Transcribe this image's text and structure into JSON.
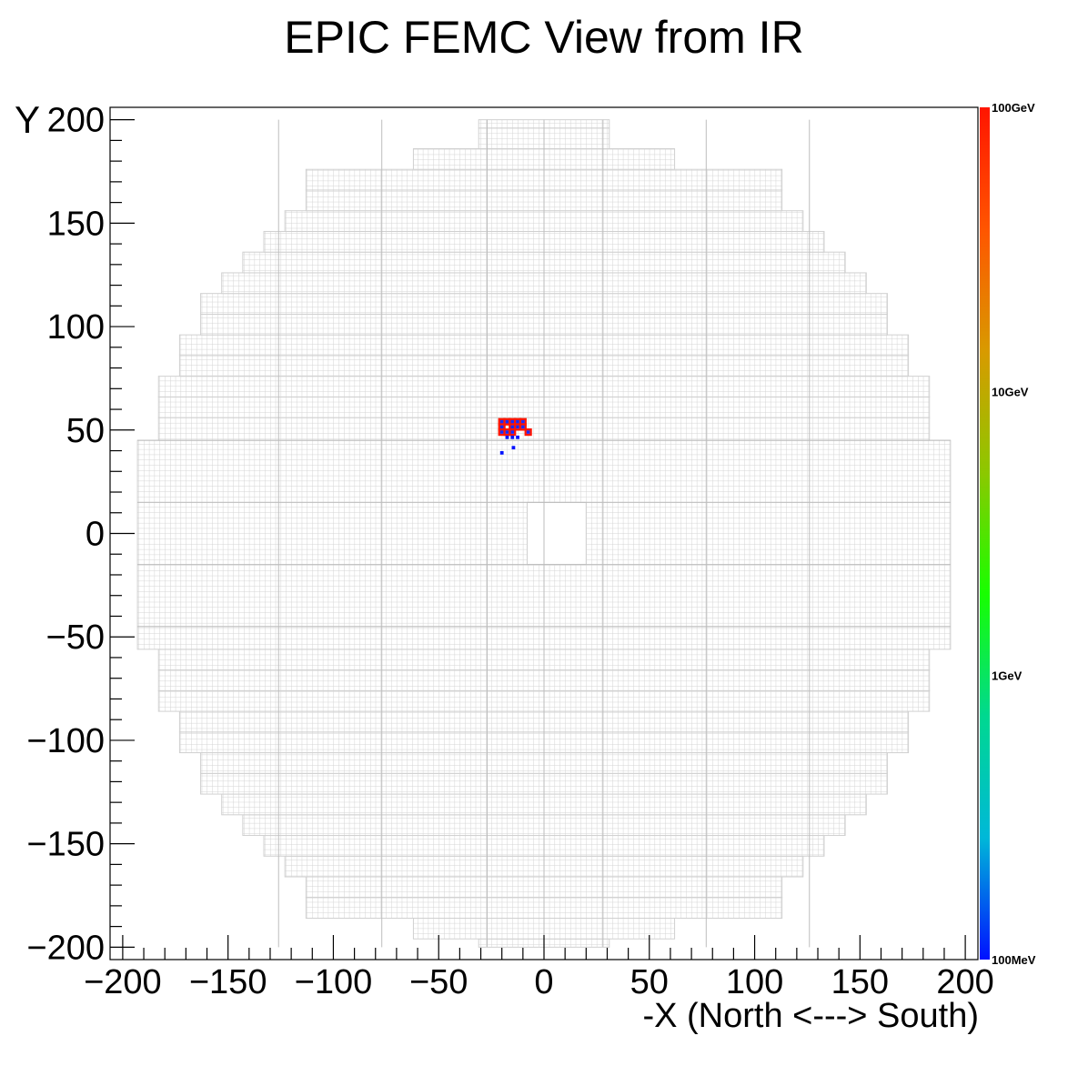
{
  "chart_data": {
    "type": "heatmap",
    "title": "EPIC FEMC View from IR",
    "xlabel": "-X (North <---> South)",
    "ylabel": "Y",
    "xlim": [
      -206,
      206
    ],
    "ylim": [
      -206,
      206
    ],
    "xticks": [
      -200,
      -150,
      -100,
      -50,
      0,
      50,
      100,
      150,
      200
    ],
    "yticks": [
      -200,
      -150,
      -100,
      -50,
      0,
      50,
      100,
      150,
      200
    ],
    "xtick_labels": [
      "−200",
      "−150",
      "−100",
      "−50",
      "0",
      "50",
      "100",
      "150",
      "200"
    ],
    "ytick_labels": [
      "−200",
      "−150",
      "−100",
      "−50",
      "0",
      "50",
      "100",
      "150",
      "200"
    ],
    "color_scale": {
      "log": true,
      "labels": [
        "100MeV",
        "1GeV",
        "10GeV",
        "100GeV"
      ],
      "values_gev": [
        0.1,
        1,
        10,
        100
      ],
      "colors": [
        "#0011ff",
        "#00b8d8",
        "#00d890",
        "#18ff00",
        "#8cc800",
        "#d89a00",
        "#ff5500",
        "#ff1500"
      ]
    },
    "detector": {
      "cell_size": 2.5,
      "grid_color": "#d0d0d0",
      "beam_hole": {
        "x": [
          -8,
          20
        ],
        "y": [
          -15,
          15
        ]
      },
      "row_extents": [
        {
          "y": [
            -200,
            -196
          ],
          "x": [
            -31,
            31
          ]
        },
        {
          "y": [
            -196,
            -186
          ],
          "x": [
            -62,
            62
          ]
        },
        {
          "y": [
            -186,
            -176
          ],
          "x": [
            -113,
            113
          ]
        },
        {
          "y": [
            -176,
            -166
          ],
          "x": [
            -113,
            113
          ]
        },
        {
          "y": [
            -166,
            -156
          ],
          "x": [
            -123,
            123
          ]
        },
        {
          "y": [
            -156,
            -146
          ],
          "x": [
            -133,
            133
          ]
        },
        {
          "y": [
            -146,
            -136
          ],
          "x": [
            -143,
            143
          ]
        },
        {
          "y": [
            -136,
            -126
          ],
          "x": [
            -153,
            153
          ]
        },
        {
          "y": [
            -126,
            -116
          ],
          "x": [
            -163,
            163
          ]
        },
        {
          "y": [
            -116,
            -106
          ],
          "x": [
            -163,
            163
          ]
        },
        {
          "y": [
            -106,
            -96
          ],
          "x": [
            -173,
            173
          ]
        },
        {
          "y": [
            -96,
            -86
          ],
          "x": [
            -173,
            173
          ]
        },
        {
          "y": [
            -86,
            -76
          ],
          "x": [
            -183,
            183
          ]
        },
        {
          "y": [
            -76,
            -66
          ],
          "x": [
            -183,
            183
          ]
        },
        {
          "y": [
            -66,
            -56
          ],
          "x": [
            -183,
            183
          ]
        },
        {
          "y": [
            -56,
            -45
          ],
          "x": [
            -193,
            193
          ]
        },
        {
          "y": [
            -45,
            45
          ],
          "x": [
            -193,
            193
          ]
        },
        {
          "y": [
            45,
            56
          ],
          "x": [
            -183,
            183
          ]
        },
        {
          "y": [
            56,
            66
          ],
          "x": [
            -183,
            183
          ]
        },
        {
          "y": [
            66,
            76
          ],
          "x": [
            -183,
            183
          ]
        },
        {
          "y": [
            76,
            86
          ],
          "x": [
            -173,
            173
          ]
        },
        {
          "y": [
            86,
            96
          ],
          "x": [
            -173,
            173
          ]
        },
        {
          "y": [
            96,
            106
          ],
          "x": [
            -163,
            163
          ]
        },
        {
          "y": [
            106,
            116
          ],
          "x": [
            -163,
            163
          ]
        },
        {
          "y": [
            116,
            126
          ],
          "x": [
            -153,
            153
          ]
        },
        {
          "y": [
            126,
            136
          ],
          "x": [
            -143,
            143
          ]
        },
        {
          "y": [
            136,
            146
          ],
          "x": [
            -133,
            133
          ]
        },
        {
          "y": [
            146,
            156
          ],
          "x": [
            -123,
            123
          ]
        },
        {
          "y": [
            156,
            166
          ],
          "x": [
            -113,
            113
          ]
        },
        {
          "y": [
            166,
            176
          ],
          "x": [
            -113,
            113
          ]
        },
        {
          "y": [
            176,
            186
          ],
          "x": [
            -62,
            62
          ]
        },
        {
          "y": [
            186,
            196
          ],
          "x": [
            -31,
            31
          ]
        },
        {
          "y": [
            196,
            200
          ],
          "x": [
            -31,
            31
          ]
        }
      ]
    },
    "hits": [
      {
        "x": -20,
        "y": 54,
        "energy_gev": 100
      },
      {
        "x": -17.5,
        "y": 54,
        "energy_gev": 100
      },
      {
        "x": -15,
        "y": 54,
        "energy_gev": 100
      },
      {
        "x": -12.5,
        "y": 54,
        "energy_gev": 100
      },
      {
        "x": -10,
        "y": 54,
        "energy_gev": 100
      },
      {
        "x": -20,
        "y": 51.5,
        "energy_gev": 100
      },
      {
        "x": -15,
        "y": 51.5,
        "energy_gev": 100
      },
      {
        "x": -12.5,
        "y": 51.5,
        "energy_gev": 100
      },
      {
        "x": -10,
        "y": 51.5,
        "energy_gev": 100
      },
      {
        "x": -20,
        "y": 49,
        "energy_gev": 100
      },
      {
        "x": -17.5,
        "y": 49,
        "energy_gev": 100
      },
      {
        "x": -15,
        "y": 49,
        "energy_gev": 100
      },
      {
        "x": -7.5,
        "y": 49,
        "energy_gev": 100
      },
      {
        "x": -17.5,
        "y": 46.5,
        "energy_gev": 0.1
      },
      {
        "x": -15,
        "y": 46.5,
        "energy_gev": 0.1
      },
      {
        "x": -12.5,
        "y": 46.5,
        "energy_gev": 0.1
      },
      {
        "x": -14.5,
        "y": 41.5,
        "energy_gev": 0.1
      },
      {
        "x": -20,
        "y": 39,
        "energy_gev": 0.1
      }
    ]
  }
}
